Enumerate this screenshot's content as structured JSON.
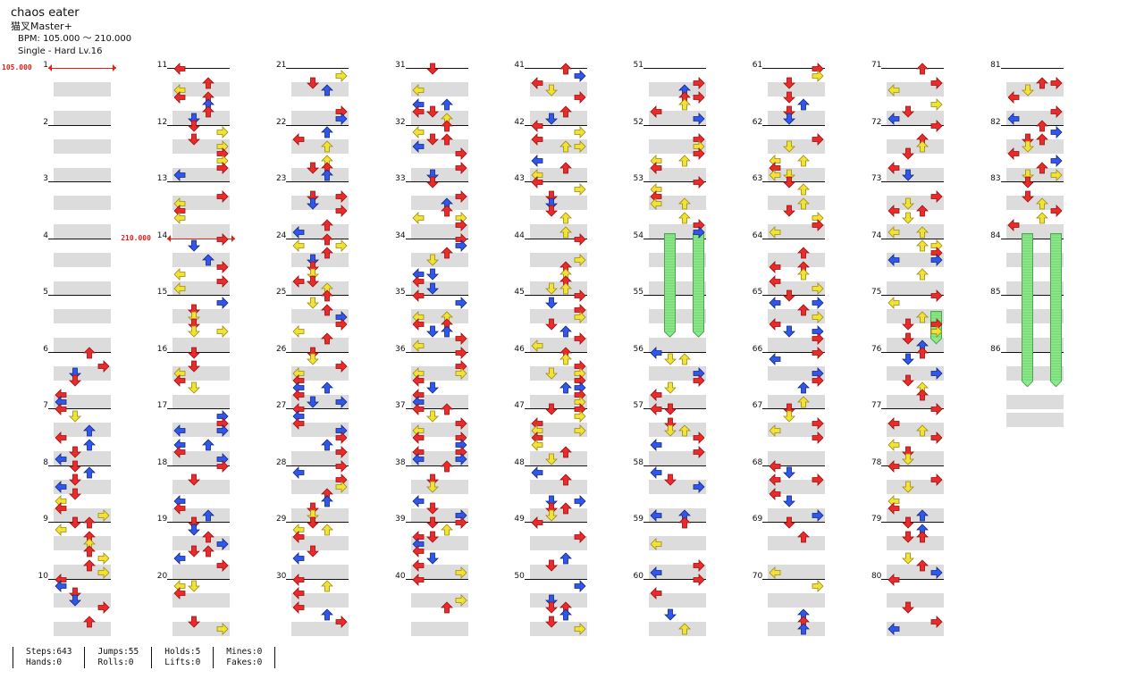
{
  "song": {
    "title": "chaos eater",
    "artist": "猫叉Master+",
    "bpm_text": "BPM: 105.000 ～ 210.000",
    "difficulty_text": "Single - Hard  Lv.16"
  },
  "colors": {
    "red": "#ea2b2b",
    "blue": "#2f57ee",
    "yellow": "#f2e235",
    "hold_green": "#8ee98e",
    "bpm_marker": "#e0201a",
    "stripe": "#dcdcdc"
  },
  "bpm_changes": [
    {
      "measure": 1,
      "bpm": "105.000"
    },
    {
      "measure": 14,
      "bpm": "210.000"
    }
  ],
  "measure_numbers": [
    "1",
    "2",
    "3",
    "4",
    "5",
    "6",
    "7",
    "8",
    "9",
    "10",
    "11",
    "12",
    "13",
    "14",
    "15",
    "16",
    "17",
    "18",
    "19",
    "20",
    "21",
    "22",
    "23",
    "24",
    "25",
    "26",
    "27",
    "28",
    "29",
    "30",
    "31",
    "32",
    "33",
    "34",
    "35",
    "36",
    "37",
    "38",
    "39",
    "40",
    "41",
    "42",
    "43",
    "44",
    "45",
    "46",
    "47",
    "48",
    "49",
    "50",
    "51",
    "52",
    "53",
    "54",
    "55",
    "56",
    "57",
    "58",
    "59",
    "60",
    "61",
    "62",
    "63",
    "64",
    "65",
    "66",
    "67",
    "68",
    "69",
    "70",
    "71",
    "72",
    "73",
    "74",
    "75",
    "76",
    "77",
    "78",
    "79",
    "80",
    "81",
    "82",
    "83",
    "84",
    "85",
    "86"
  ],
  "holds": [
    {
      "lane": 1,
      "start_measure": 54,
      "end_measure": 55.75
    },
    {
      "lane": 3,
      "start_measure": 54,
      "end_measure": 55.75
    },
    {
      "lane": 3,
      "start_measure": 75.375,
      "end_measure": 75.875
    },
    {
      "lane": 1,
      "start_measure": 84,
      "end_measure": 86.625
    },
    {
      "lane": 3,
      "start_measure": 84,
      "end_measure": 86.625
    }
  ],
  "stats": {
    "steps": "Steps:643",
    "hands": "Hands:0",
    "jumps": "Jumps:55",
    "rolls": "Rolls:0",
    "holds": "Holds:5",
    "lifts": "Lifts:0",
    "mines": "Mines:0",
    "fakes": "Fakes:0"
  }
}
